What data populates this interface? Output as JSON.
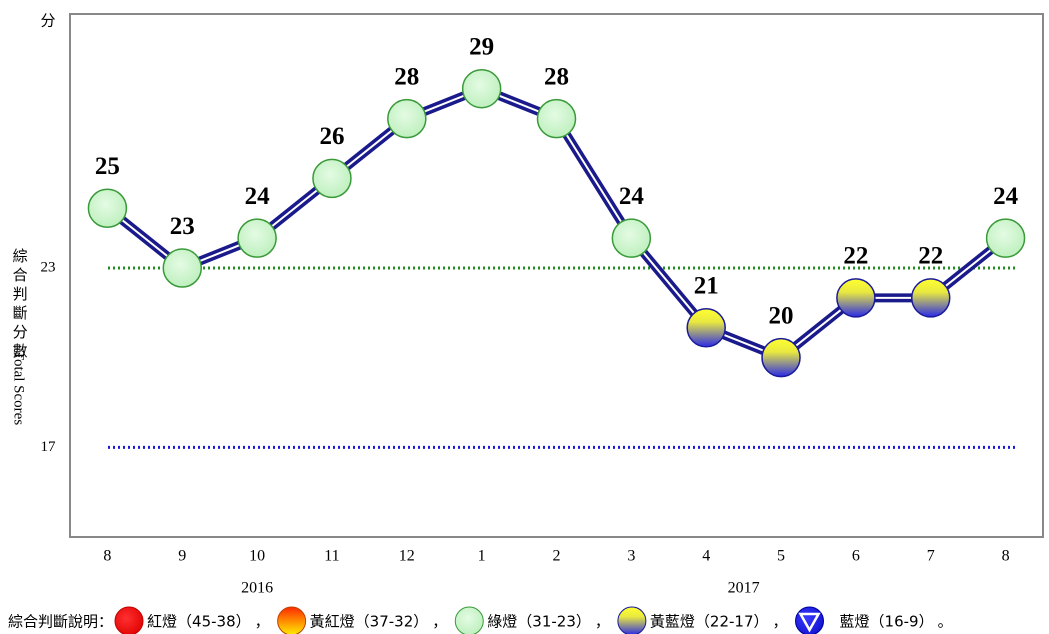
{
  "chart_data": {
    "type": "line",
    "y_unit_label": "分",
    "y_axis_label": "綜合判斷分數",
    "y_axis_label_en": "Total Scores",
    "categories": [
      "8",
      "9",
      "10",
      "11",
      "12",
      "1",
      "2",
      "3",
      "4",
      "5",
      "6",
      "7",
      "8"
    ],
    "year_groups": [
      {
        "label": "2016",
        "start": 0,
        "end": 4
      },
      {
        "label": "2017",
        "start": 5,
        "end": 12
      }
    ],
    "series": [
      {
        "name": "綜合判斷分數",
        "color": "#1a1a8c",
        "values": [
          25,
          23,
          24,
          26,
          28,
          29,
          28,
          24,
          21,
          20,
          22,
          22,
          24
        ],
        "marker_legend": [
          2,
          2,
          2,
          2,
          2,
          2,
          2,
          2,
          3,
          3,
          3,
          3,
          2
        ]
      }
    ],
    "ylim": [
      14,
      31.5
    ],
    "yticks": [
      17,
      23
    ],
    "ytick_line_colors": [
      "#1a1ad6",
      "#228b22"
    ],
    "legend": {
      "title": "綜合判斷說明：",
      "items": [
        {
          "label": "紅燈",
          "range": "（45-38）"
        },
        {
          "label": "黃紅燈",
          "range": "（37-32）"
        },
        {
          "label": "綠燈",
          "range": "（31-23）"
        },
        {
          "label": "黃藍燈",
          "range": "（22-17）"
        },
        {
          "label": "藍燈",
          "range": "（16-9）"
        }
      ],
      "separator": "，",
      "end": "。"
    }
  }
}
